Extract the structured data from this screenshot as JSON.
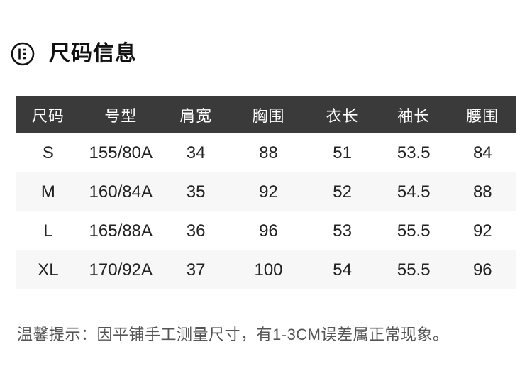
{
  "header": {
    "title": "尺码信息"
  },
  "table": {
    "columns": [
      "尺码",
      "号型",
      "肩宽",
      "胸围",
      "衣长",
      "袖长",
      "腰围"
    ],
    "rows": [
      [
        "S",
        "155/80A",
        "34",
        "88",
        "51",
        "53.5",
        "84"
      ],
      [
        "M",
        "160/84A",
        "35",
        "92",
        "52",
        "54.5",
        "88"
      ],
      [
        "L",
        "165/88A",
        "36",
        "96",
        "53",
        "55.5",
        "92"
      ],
      [
        "XL",
        "170/92A",
        "37",
        "100",
        "54",
        "55.5",
        "96"
      ]
    ]
  },
  "footer": {
    "note": "温馨提示：因平铺手工测量尺寸，有1-3CM误差属正常现象。"
  },
  "colors": {
    "table_header_bg": "#3a3a3a",
    "table_header_text": "#ffffff",
    "row_alt_bg": "#f7f7f7",
    "body_text": "#222222",
    "note_text": "#555555",
    "title_text": "#111111"
  }
}
